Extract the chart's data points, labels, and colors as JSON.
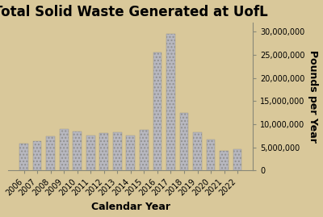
{
  "title": "Total Solid Waste Generated at UofL",
  "xlabel": "Calendar Year",
  "ylabel": "Pounds per Year",
  "years": [
    "2006",
    "2007",
    "2008",
    "2009",
    "2010",
    "2011",
    "2012",
    "2013",
    "2014",
    "2015",
    "2016",
    "2017",
    "2018",
    "2019",
    "2020",
    "2021",
    "2022"
  ],
  "values": [
    5800000,
    6400000,
    7300000,
    9000000,
    8400000,
    7600000,
    8000000,
    8300000,
    7500000,
    8800000,
    25500000,
    29500000,
    12500000,
    8300000,
    6700000,
    4200000,
    4500000
  ],
  "ylim": [
    0,
    32000000
  ],
  "yticks": [
    0,
    5000000,
    10000000,
    15000000,
    20000000,
    25000000,
    30000000
  ],
  "background_color": "#d9c89a",
  "bar_face_color": "#b8b8c0",
  "bar_edge_color": "#888888",
  "title_fontsize": 12,
  "axis_label_fontsize": 9,
  "tick_fontsize": 7,
  "fig_width": 4.0,
  "fig_height": 2.69,
  "dpi": 100
}
